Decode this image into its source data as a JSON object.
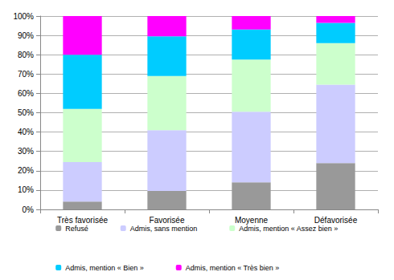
{
  "chart_data": {
    "type": "bar",
    "stacked": true,
    "grid": true,
    "legend": "bottom",
    "categories": [
      "Très favorisée",
      "Favorisée",
      "Moyenne",
      "Défavorisée"
    ],
    "series": [
      {
        "name": "Refusé",
        "color": "#999999",
        "values": [
          4,
          9.5,
          14,
          24
        ]
      },
      {
        "name": "Admis, sans mention",
        "color": "#ccccff",
        "values": [
          20.5,
          31.5,
          36.5,
          40.5
        ]
      },
      {
        "name": "Admis, mention « Assez bien »",
        "color": "#ccffcc",
        "values": [
          27.5,
          28,
          27,
          21.5
        ]
      },
      {
        "name": "Admis, mention « Bien »",
        "color": "#00ccff",
        "values": [
          28,
          20.5,
          15.5,
          10.5
        ]
      },
      {
        "name": "Admis, mention « Très bien »",
        "color": "#ff00ff",
        "values": [
          20,
          10.5,
          7,
          3.5
        ]
      }
    ],
    "ylim": [
      0,
      100
    ],
    "yticks": [
      {
        "value": 0,
        "label": "0%"
      },
      {
        "value": 10,
        "label": "10%"
      },
      {
        "value": 20,
        "label": "20%"
      },
      {
        "value": 30,
        "label": "30%"
      },
      {
        "value": 40,
        "label": "40%"
      },
      {
        "value": 50,
        "label": "50%"
      },
      {
        "value": 60,
        "label": "60%"
      },
      {
        "value": 70,
        "label": "70%"
      },
      {
        "value": 80,
        "label": "80%"
      },
      {
        "value": 90,
        "label": "90%"
      },
      {
        "value": 100,
        "label": "100%"
      }
    ]
  }
}
